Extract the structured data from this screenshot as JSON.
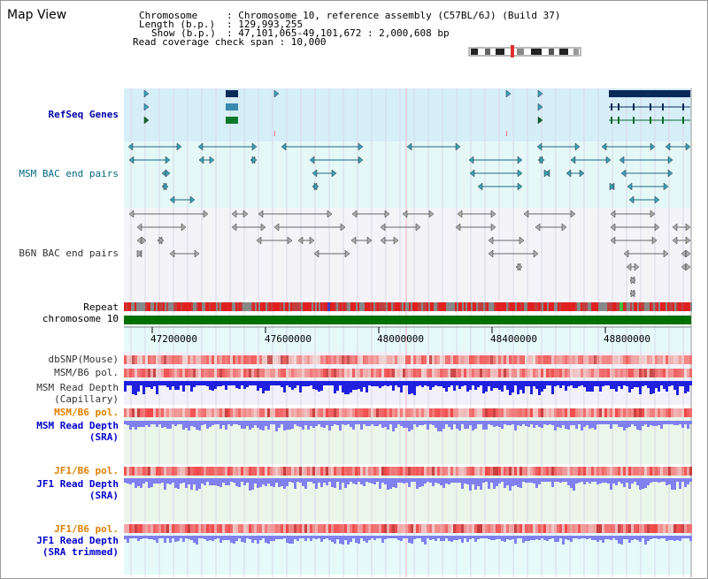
{
  "view": {
    "title": "Map View",
    "chromosome_label": "Chromosome",
    "chromosome_value": ": Chromosome 10, reference assembly (C57BL/6J) (Build 37)",
    "length_label": "Length (b.p.)",
    "length_value": ": 129,993,255",
    "show_label": "Show (b.p.)",
    "show_value": ": 47,101,065-49,101,672 : 2,000,608 bp",
    "coverage_text": "Read coverage check span : 10,000"
  },
  "tracks": {
    "refseq": "RefSeq Genes",
    "msm_bac": "MSM BAC end pairs",
    "b6n_bac": "B6N BAC end pairs",
    "repeat": "Repeat",
    "chromosome": "chromosome 10",
    "dbsnp": "dbSNP(Mouse)",
    "msm_b6_pol_1": "MSM/B6 pol.",
    "msm_read_depth_cap_1": "MSM Read Depth",
    "msm_read_depth_cap_2": "(Capillary)",
    "msm_b6_pol_2": "MSM/B6 pol.",
    "msm_read_depth_sra_1": "MSM Read Depth",
    "msm_read_depth_sra_2": "(SRA)",
    "jf1_b6_pol_1": "JF1/B6 pol.",
    "jf1_read_depth_sra_1": "JF1 Read Depth",
    "jf1_read_depth_sra_2": "(SRA)",
    "jf1_b6_pol_2": "JF1/B6 pol.",
    "jf1_read_depth_trim_1": "JF1 Read Depth",
    "jf1_read_depth_trim_2": "(SRA trimmed)"
  },
  "axis": {
    "ticks": [
      "47200000",
      "47600000",
      "48000000",
      "48400000",
      "48800000"
    ]
  },
  "colors": {
    "refseq_bg": "#d6eef8",
    "msm_bg": "#e4f8f8",
    "b6n_bg": "#f4f4f8",
    "gene_dark": "#0a2a5a",
    "msm_feature": "#1a6a80",
    "repeat_red": "#e02020",
    "chromosome_green": "#007000",
    "depth_blue": "#2020e0",
    "depth_light_blue": "#8080f0"
  }
}
